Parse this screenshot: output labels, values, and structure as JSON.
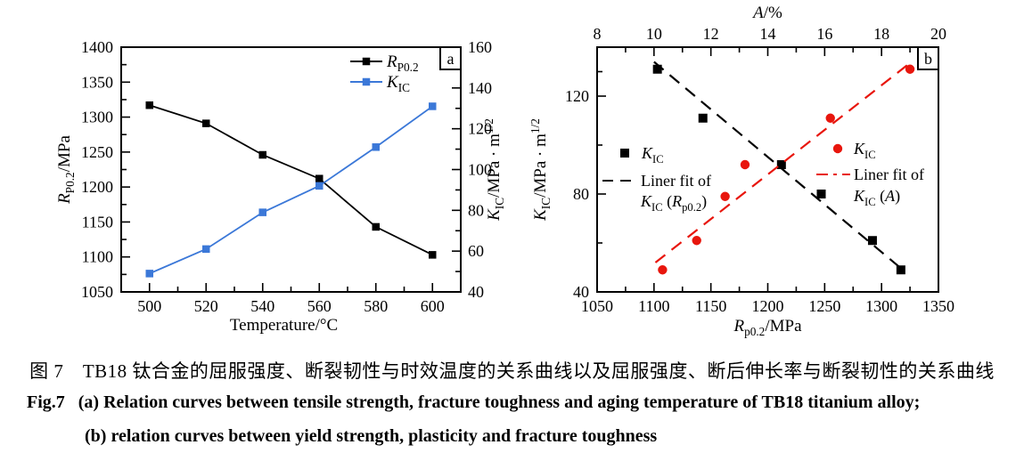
{
  "figure": {
    "caption_zh": "图 7　TB18 钛合金的屈服强度、断裂韧性与时效温度的关系曲线以及屈服强度、断后伸长率与断裂韧性的关系曲线",
    "caption_en_line1": "Fig.7   (a) Relation curves between tensile strength, fracture toughness and aging temperature of TB18 titanium alloy;",
    "caption_en_line2": "(b) relation curves between yield strength, plasticity and fracture toughness"
  },
  "colors": {
    "black": "#000000",
    "blue": "#3b78d8",
    "red": "#e8160d"
  },
  "chart_data": [
    {
      "id": "a",
      "type": "line",
      "panel_label": "a",
      "x_label": "Temperature/°C",
      "y_left_label": "$R$_{P0.2}/MPa",
      "y_right_label": "$K$_{IC}/MPa · m^{1/2}",
      "x": [
        500,
        520,
        540,
        560,
        580,
        600
      ],
      "xlim": [
        490,
        610
      ],
      "y_left_lim": [
        1050,
        1400
      ],
      "y_right_lim": [
        40,
        160
      ],
      "x_ticks": {
        "major": [
          500,
          520,
          540,
          560,
          580,
          600
        ],
        "minor": [
          510,
          530,
          550,
          570,
          590
        ]
      },
      "y_left_ticks": {
        "major": [
          1050,
          1100,
          1150,
          1200,
          1250,
          1300,
          1350,
          1400
        ],
        "minor": [
          1075,
          1125,
          1175,
          1225,
          1275,
          1325,
          1375
        ]
      },
      "y_right_ticks": {
        "major": [
          40,
          60,
          80,
          100,
          120,
          140,
          160
        ],
        "minor": [
          50,
          70,
          90,
          110,
          130,
          150
        ]
      },
      "series": [
        {
          "name": "$R$_{P0.2}",
          "axis": "left",
          "color": "black",
          "marker": "square",
          "values": [
            1317,
            1291,
            1246,
            1212,
            1143,
            1103
          ]
        },
        {
          "name": "$K$_{IC}",
          "axis": "right",
          "color": "blue",
          "marker": "square",
          "values": [
            49,
            61,
            79,
            92,
            111,
            131
          ]
        }
      ]
    },
    {
      "id": "b",
      "type": "scatter",
      "panel_label": "b",
      "x_bottom_label": "$R$_{p0.2}/MPa",
      "x_top_label": "$A$/%",
      "y_label": "$K$_{IC}/MPa · m^{1/2}",
      "x_bottom_lim": [
        1050,
        1350
      ],
      "x_top_lim": [
        8,
        20
      ],
      "ylim": [
        40,
        140
      ],
      "x_bottom_ticks": {
        "major": [
          1050,
          1100,
          1150,
          1200,
          1250,
          1300,
          1350
        ],
        "minor": [
          1075,
          1125,
          1175,
          1225,
          1275,
          1325
        ]
      },
      "x_top_ticks": {
        "major": [
          8,
          10,
          12,
          14,
          16,
          18,
          20
        ],
        "minor": [
          9,
          11,
          13,
          15,
          17,
          19
        ]
      },
      "y_ticks": {
        "major": [
          40,
          80,
          120
        ],
        "minor": [
          60,
          100,
          130
        ]
      },
      "series": [
        {
          "name": "$K$_{IC}",
          "axis": "bottom",
          "color": "black",
          "marker": "square",
          "points": [
            [
              1103,
              131
            ],
            [
              1143,
              111
            ],
            [
              1212,
              92
            ],
            [
              1247,
              80
            ],
            [
              1292,
              61
            ],
            [
              1317,
              49
            ]
          ],
          "fit": {
            "label_line1": "Liner fit of",
            "label_line2": "$K$_{IC} ($R$_{p0.2})",
            "from": [
              1100,
              134
            ],
            "to": [
              1320,
              48.5
            ]
          }
        },
        {
          "name": "$K$_{IC}",
          "axis": "top",
          "color": "red",
          "marker": "circle",
          "points": [
            [
              10.3,
              49
            ],
            [
              11.5,
              61
            ],
            [
              12.5,
              79
            ],
            [
              13.2,
              92
            ],
            [
              16.2,
              111
            ],
            [
              19.0,
              131
            ]
          ],
          "fit": {
            "label_line1": "Liner fit of",
            "label_line2": "$K$_{IC} ($A$)",
            "from": [
              10.05,
              52
            ],
            "to": [
              19.05,
              134
            ]
          }
        }
      ]
    }
  ]
}
